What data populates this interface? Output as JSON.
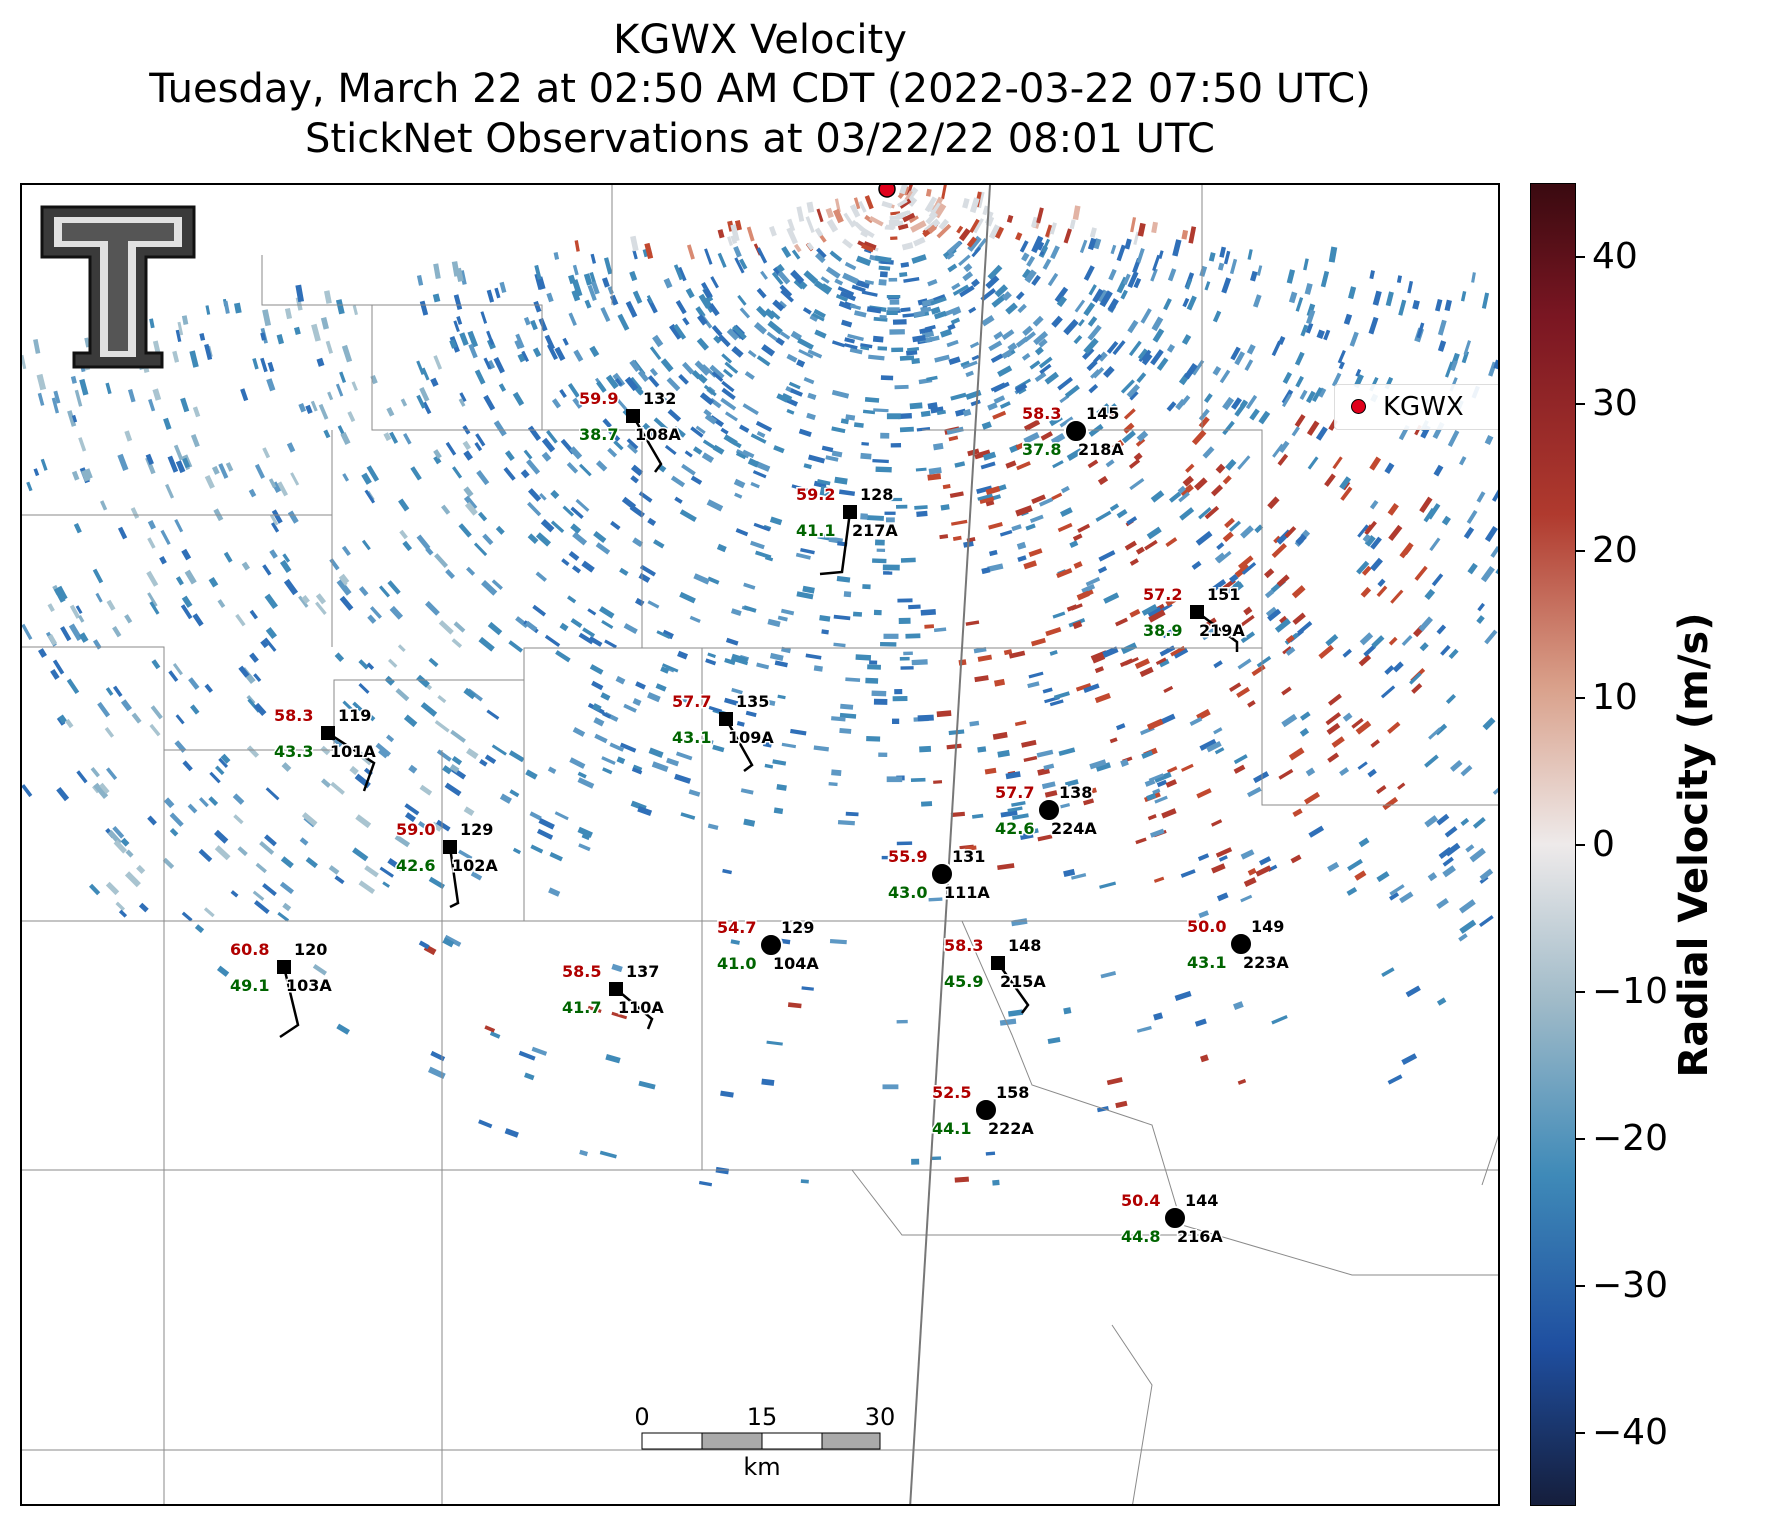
{
  "title": {
    "line1": "KGWX Velocity",
    "line2": "Tuesday, March 22 at 02:50 AM CDT (2022-03-22 07:50 UTC)",
    "line3": "StickNet Observations at 03/22/22 08:01 UTC"
  },
  "legend": {
    "label": "KGWX",
    "color": "#e0001b"
  },
  "colorbar": {
    "label": "Radial Velocity (m/s)",
    "min": -45,
    "max": 45,
    "ticks": [
      "40",
      "30",
      "20",
      "10",
      "0",
      "−10",
      "−20",
      "−30",
      "−40"
    ],
    "colors": {
      "max": "#3a0a10",
      "high": "#b03a2e",
      "zero": "#eeeaea",
      "low": "#3f8ab8",
      "min": "#151e3c"
    }
  },
  "scale_bar": {
    "labels": [
      "0",
      "15",
      "30"
    ],
    "unit": "km"
  },
  "station_colors": {
    "temperature": "#b00000",
    "dewpoint": "#006400",
    "id": "#000000"
  },
  "stations": [
    {
      "id": "108A",
      "temp": "59.9",
      "dew": "38.7",
      "pressure": "132",
      "marker": "square"
    },
    {
      "id": "218A",
      "temp": "58.3",
      "dew": "37.8",
      "pressure": "145",
      "marker": "circle"
    },
    {
      "id": "217A",
      "temp": "59.2",
      "dew": "41.1",
      "pressure": "128",
      "marker": "square"
    },
    {
      "id": "219A",
      "temp": "57.2",
      "dew": "38.9",
      "pressure": "151",
      "marker": "square"
    },
    {
      "id": "101A",
      "temp": "58.3",
      "dew": "43.3",
      "pressure": "119",
      "marker": "square"
    },
    {
      "id": "109A",
      "temp": "57.7",
      "dew": "43.1",
      "pressure": "135",
      "marker": "square"
    },
    {
      "id": "224A",
      "temp": "57.7",
      "dew": "42.6",
      "pressure": "138",
      "marker": "circle"
    },
    {
      "id": "102A",
      "temp": "59.0",
      "dew": "42.6",
      "pressure": "129",
      "marker": "square"
    },
    {
      "id": "111A",
      "temp": "55.9",
      "dew": "43.0",
      "pressure": "131",
      "marker": "circle"
    },
    {
      "id": "104A",
      "temp": "54.7",
      "dew": "41.0",
      "pressure": "129",
      "marker": "circle"
    },
    {
      "id": "215A",
      "temp": "58.3",
      "dew": "45.9",
      "pressure": "148",
      "marker": "square"
    },
    {
      "id": "223A",
      "temp": "50.0",
      "dew": "43.1",
      "pressure": "149",
      "marker": "circle"
    },
    {
      "id": "103A",
      "temp": "60.8",
      "dew": "49.1",
      "pressure": "120",
      "marker": "square"
    },
    {
      "id": "110A",
      "temp": "58.5",
      "dew": "41.7",
      "pressure": "137",
      "marker": "square"
    },
    {
      "id": "222A",
      "temp": "52.5",
      "dew": "44.1",
      "pressure": "158",
      "marker": "circle"
    },
    {
      "id": "216A",
      "temp": "50.4",
      "dew": "44.8",
      "pressure": "144",
      "marker": "circle"
    }
  ]
}
